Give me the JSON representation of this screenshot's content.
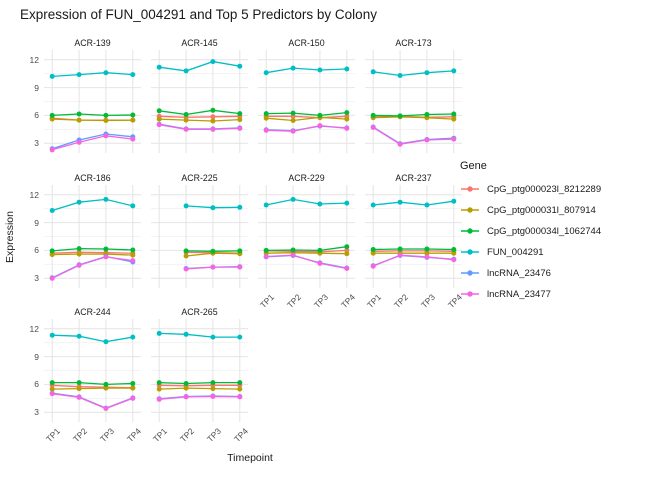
{
  "chart_data": {
    "type": "line",
    "title": "Expression of FUN_004291 and Top 5 Predictors by Colony",
    "xlabel": "Timepoint",
    "ylabel": "Expression",
    "legend_title": "Gene",
    "legend_position": "right",
    "grid": true,
    "x_categories": [
      "TP1",
      "TP2",
      "TP3",
      "TP4"
    ],
    "y_ticks": [
      3,
      6,
      9,
      12
    ],
    "y_minor_ticks": [
      4.5,
      7.5,
      10.5
    ],
    "ylim": [
      1.95,
      13.05
    ],
    "series": [
      {
        "name": "CpG_ptg000023l_8212289",
        "color": "#F8766D"
      },
      {
        "name": "CpG_ptg000031l_807914",
        "color": "#B79F00"
      },
      {
        "name": "CpG_ptg000034l_1062744",
        "color": "#00BA38"
      },
      {
        "name": "FUN_004291",
        "color": "#00BFC4"
      },
      {
        "name": "lncRNA_23476",
        "color": "#619CFF"
      },
      {
        "name": "lncRNA_23477",
        "color": "#F564E3"
      }
    ],
    "facets": [
      {
        "name": "ACR-139",
        "values": [
          [
            5.7,
            5.5,
            5.5,
            5.5
          ],
          [
            5.6,
            5.5,
            5.45,
            5.5
          ],
          [
            6.0,
            6.15,
            6.0,
            6.05
          ],
          [
            10.2,
            10.4,
            10.6,
            10.4
          ],
          [
            2.4,
            3.35,
            4.0,
            3.7
          ],
          [
            2.3,
            3.1,
            3.8,
            3.45
          ]
        ]
      },
      {
        "name": "ACR-145",
        "values": [
          [
            5.9,
            5.8,
            5.85,
            5.9
          ],
          [
            5.6,
            5.5,
            5.4,
            5.55
          ],
          [
            6.5,
            6.1,
            6.55,
            6.2
          ],
          [
            11.2,
            10.8,
            11.8,
            11.3
          ],
          [
            5.05,
            4.55,
            4.55,
            4.65
          ],
          [
            5.0,
            4.5,
            4.5,
            4.6
          ]
        ]
      },
      {
        "name": "ACR-150",
        "values": [
          [
            5.9,
            5.9,
            5.75,
            5.9
          ],
          [
            5.7,
            5.45,
            5.8,
            5.6
          ],
          [
            6.2,
            6.25,
            6.0,
            6.3
          ],
          [
            10.6,
            11.1,
            10.9,
            11.0
          ],
          [
            4.45,
            4.35,
            4.85,
            4.65
          ],
          [
            4.4,
            4.3,
            4.9,
            4.6
          ]
        ]
      },
      {
        "name": "ACR-173",
        "values": [
          [
            5.85,
            5.9,
            5.8,
            5.85
          ],
          [
            5.75,
            5.85,
            5.75,
            5.6
          ],
          [
            6.0,
            5.95,
            6.1,
            6.15
          ],
          [
            10.7,
            10.3,
            10.6,
            10.8
          ],
          [
            4.75,
            2.95,
            3.4,
            3.55
          ],
          [
            4.7,
            2.9,
            3.35,
            3.45
          ]
        ]
      },
      {
        "name": "ACR-186",
        "values": [
          [
            5.7,
            5.8,
            5.75,
            5.7
          ],
          [
            5.55,
            5.6,
            5.6,
            5.5
          ],
          [
            5.95,
            6.2,
            6.15,
            6.05
          ],
          [
            10.3,
            11.2,
            11.5,
            10.8
          ],
          [
            3.05,
            4.45,
            5.35,
            4.75
          ],
          [
            3.0,
            4.4,
            5.3,
            4.9
          ]
        ]
      },
      {
        "name": "ACR-225",
        "values": [
          [
            null,
            5.8,
            5.75,
            5.7
          ],
          [
            null,
            5.4,
            5.7,
            5.65
          ],
          [
            null,
            5.95,
            5.9,
            5.95
          ],
          [
            null,
            10.8,
            10.6,
            10.65
          ],
          [
            null,
            4.05,
            4.2,
            4.25
          ],
          [
            null,
            4.0,
            4.2,
            4.2
          ]
        ]
      },
      {
        "name": "ACR-229",
        "values": [
          [
            5.95,
            5.9,
            5.85,
            6.0
          ],
          [
            5.7,
            5.75,
            5.7,
            5.65
          ],
          [
            6.0,
            6.05,
            6.0,
            6.4
          ],
          [
            10.9,
            11.5,
            11.0,
            11.1
          ],
          [
            5.3,
            5.45,
            4.65,
            4.1
          ],
          [
            5.35,
            5.5,
            4.6,
            4.05
          ]
        ]
      },
      {
        "name": "ACR-237",
        "values": [
          [
            5.9,
            5.95,
            5.95,
            5.9
          ],
          [
            5.7,
            5.7,
            5.7,
            5.7
          ],
          [
            6.1,
            6.15,
            6.15,
            6.1
          ],
          [
            10.9,
            11.2,
            10.9,
            11.3
          ],
          [
            4.35,
            5.45,
            5.25,
            5.05
          ],
          [
            4.3,
            5.5,
            5.3,
            5.0
          ]
        ]
      },
      {
        "name": "ACR-244",
        "values": [
          [
            5.9,
            5.75,
            5.7,
            5.65
          ],
          [
            5.5,
            5.55,
            5.6,
            5.6
          ],
          [
            6.2,
            6.2,
            6.0,
            6.1
          ],
          [
            11.3,
            11.2,
            10.6,
            11.1
          ],
          [
            5.05,
            4.65,
            3.45,
            4.55
          ],
          [
            5.0,
            4.6,
            3.4,
            4.5
          ]
        ]
      },
      {
        "name": "ACR-265",
        "values": [
          [
            5.9,
            5.85,
            5.9,
            5.9
          ],
          [
            5.5,
            5.6,
            5.55,
            5.5
          ],
          [
            6.2,
            6.1,
            6.2,
            6.2
          ],
          [
            11.5,
            11.4,
            11.1,
            11.1
          ],
          [
            4.45,
            4.7,
            4.75,
            4.7
          ],
          [
            4.4,
            4.65,
            4.7,
            4.65
          ]
        ]
      }
    ],
    "colors": {
      "grid_major": "#E4E4E4",
      "grid_minor": "#F1F1F1",
      "background": "#FFFFFF"
    }
  }
}
